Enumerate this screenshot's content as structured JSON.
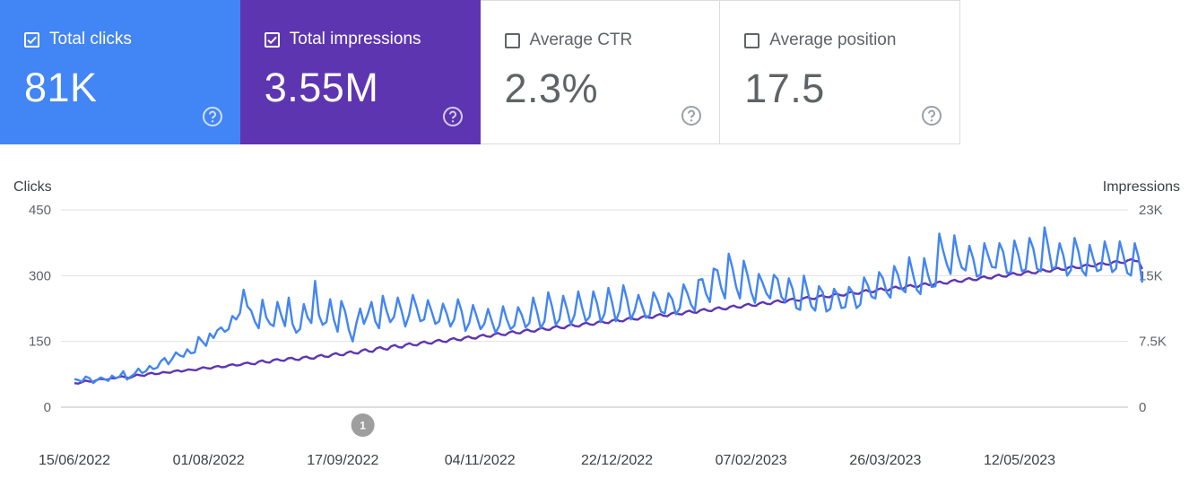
{
  "cards": [
    {
      "label": "Total clicks",
      "value": "81K",
      "checked": true,
      "color": "#4285f4"
    },
    {
      "label": "Total impressions",
      "value": "3.55M",
      "checked": true,
      "color": "#5e35b1"
    },
    {
      "label": "Average CTR",
      "value": "2.3%",
      "checked": false,
      "color": "#ffffff"
    },
    {
      "label": "Average position",
      "value": "17.5",
      "checked": false,
      "color": "#ffffff"
    }
  ],
  "icons": {
    "checkbox": "check-icon",
    "help": "help-circle-icon"
  },
  "chart_data": {
    "type": "line",
    "ylabel": "Clicks",
    "y2label": "Impressions",
    "yticks": [
      "0",
      "150",
      "300",
      "450"
    ],
    "y2ticks": [
      "0",
      "7.5K",
      "15K",
      "23K"
    ],
    "ylim": [
      0,
      450
    ],
    "y2lim": [
      0,
      23000
    ],
    "xticks": [
      "15/06/2022",
      "01/08/2022",
      "17/09/2022",
      "04/11/2022",
      "22/12/2022",
      "07/02/2023",
      "26/03/2023",
      "12/05/2023"
    ],
    "grid": true,
    "annotation": {
      "label": "1",
      "date": "24/09/2022"
    },
    "series": [
      {
        "name": "Clicks",
        "axis": "left",
        "color": "#4285f4",
        "start": "15/06/2022",
        "end": "24/06/2023",
        "values": [
          64,
          62,
          58,
          70,
          66,
          55,
          62,
          68,
          64,
          60,
          72,
          66,
          70,
          82,
          63,
          70,
          76,
          88,
          78,
          82,
          94,
          87,
          90,
          105,
          112,
          98,
          110,
          125,
          118,
          115,
          132,
          123,
          125,
          160,
          150,
          140,
          168,
          158,
          175,
          182,
          172,
          178,
          208,
          200,
          214,
          268,
          230,
          220,
          195,
          180,
          245,
          205,
          190,
          185,
          240,
          210,
          185,
          250,
          190,
          170,
          178,
          235,
          205,
          192,
          288,
          210,
          188,
          194,
          246,
          200,
          172,
          242,
          218,
          176,
          150,
          192,
          225,
          190,
          212,
          240,
          196,
          180,
          254,
          220,
          194,
          206,
          250,
          220,
          184,
          210,
          256,
          228,
          196,
          200,
          244,
          218,
          190,
          196,
          236,
          214,
          184,
          200,
          246,
          218,
          174,
          192,
          233,
          206,
          178,
          190,
          224,
          196,
          170,
          186,
          230,
          200,
          178,
          186,
          228,
          210,
          182,
          192,
          250,
          218,
          180,
          196,
          262,
          230,
          188,
          200,
          254,
          224,
          188,
          210,
          264,
          228,
          196,
          206,
          264,
          236,
          194,
          214,
          272,
          238,
          196,
          220,
          278,
          244,
          200,
          220,
          256,
          230,
          204,
          210,
          262,
          244,
          218,
          214,
          260,
          246,
          212,
          226,
          280,
          260,
          234,
          220,
          290,
          292,
          258,
          240,
          316,
          312,
          272,
          248,
          350,
          318,
          274,
          248,
          334,
          302,
          262,
          238,
          304,
          284,
          260,
          248,
          302,
          292,
          252,
          240,
          294,
          270,
          226,
          222,
          300,
          264,
          230,
          220,
          276,
          262,
          218,
          224,
          270,
          256,
          226,
          228,
          274,
          262,
          226,
          234,
          296,
          278,
          252,
          248,
          308,
          294,
          262,
          250,
          322,
          302,
          270,
          262,
          342,
          304,
          268,
          258,
          340,
          302,
          274,
          276,
          396,
          358,
          326,
          304,
          392,
          346,
          318,
          312,
          368,
          340,
          298,
          302,
          374,
          346,
          320,
          318,
          374,
          354,
          306,
          308,
          380,
          350,
          310,
          314,
          386,
          362,
          316,
          310,
          410,
          366,
          316,
          320,
          374,
          346,
          300,
          312,
          386,
          356,
          312,
          300,
          370,
          338,
          310,
          314,
          378,
          346,
          308,
          316,
          378,
          344,
          306,
          300,
          374,
          342,
          284
        ]
      },
      {
        "name": "Impressions",
        "axis": "right",
        "color": "#5e35b1",
        "start": "15/06/2022",
        "end": "24/06/2023",
        "values": [
          2800,
          2750,
          2900,
          3100,
          3000,
          2950,
          3150,
          3300,
          3250,
          3200,
          3400,
          3350,
          3500,
          3600,
          3450,
          3400,
          3600,
          3800,
          3700,
          3650,
          3900,
          4000,
          3850,
          3900,
          4100,
          4050,
          4000,
          4200,
          4300,
          4150,
          4250,
          4400,
          4350,
          4300,
          4500,
          4650,
          4550,
          4500,
          4700,
          4800,
          4650,
          4700,
          4900,
          5000,
          4850,
          4900,
          5100,
          5200,
          5050,
          5000,
          5300,
          5450,
          5250,
          5200,
          5500,
          5600,
          5450,
          5400,
          5700,
          5750,
          5550,
          5500,
          5800,
          5900,
          5700,
          5650,
          5950,
          6100,
          5900,
          5850,
          6150,
          6300,
          6100,
          6050,
          6350,
          6500,
          6300,
          6250,
          6600,
          6750,
          6500,
          6450,
          6850,
          7000,
          6800,
          6700,
          7100,
          7250,
          7000,
          6950,
          7300,
          7450,
          7250,
          7200,
          7500,
          7650,
          7450,
          7400,
          7700,
          7850,
          7650,
          7600,
          7900,
          8050,
          7850,
          7800,
          8100,
          8250,
          8050,
          8000,
          8300,
          8450,
          8250,
          8200,
          8500,
          8650,
          8450,
          8400,
          8700,
          8850,
          8650,
          8600,
          8900,
          9050,
          8850,
          8800,
          9100,
          9250,
          9050,
          9000,
          9300,
          9450,
          9250,
          9200,
          9500,
          9650,
          9450,
          9400,
          9700,
          9850,
          9650,
          9600,
          9900,
          10050,
          9850,
          9800,
          10100,
          10250,
          10050,
          10000,
          10300,
          10450,
          10250,
          10200,
          10500,
          10650,
          10450,
          10400,
          10700,
          10850,
          10650,
          10600,
          10900,
          11050,
          10850,
          10800,
          11100,
          11250,
          11050,
          11000,
          11300,
          11450,
          11250,
          11200,
          11500,
          11650,
          11450,
          11400,
          11700,
          11850,
          11650,
          11600,
          11900,
          12050,
          11850,
          11800,
          12100,
          12250,
          12050,
          12000,
          12300,
          12450,
          12250,
          12200,
          12500,
          12650,
          12450,
          12400,
          12700,
          12850,
          12650,
          12600,
          12900,
          13050,
          12850,
          12800,
          13100,
          13250,
          13050,
          13000,
          13300,
          13450,
          13250,
          13200,
          13500,
          13650,
          13450,
          13400,
          13700,
          13850,
          13650,
          13600,
          13900,
          14050,
          13850,
          13800,
          14100,
          14250,
          14050,
          14000,
          14300,
          14450,
          14250,
          14200,
          14500,
          14650,
          14450,
          14400,
          14700,
          14850,
          14650,
          14600,
          14900,
          15050,
          14850,
          14800,
          15100,
          15250,
          15050,
          15000,
          15300,
          15450,
          15250,
          15200,
          15500,
          15650,
          15450,
          15400,
          15700,
          15850,
          15650,
          15600,
          15900,
          16050,
          15850,
          15800,
          16100,
          16250,
          16050,
          16000,
          16300,
          16450,
          16250,
          16200,
          16500,
          16650,
          16450,
          16400,
          16700,
          16850,
          16650,
          16600,
          16900,
          17050,
          16850,
          16800,
          17100,
          17250,
          17050,
          17000,
          16100
        ]
      }
    ]
  }
}
